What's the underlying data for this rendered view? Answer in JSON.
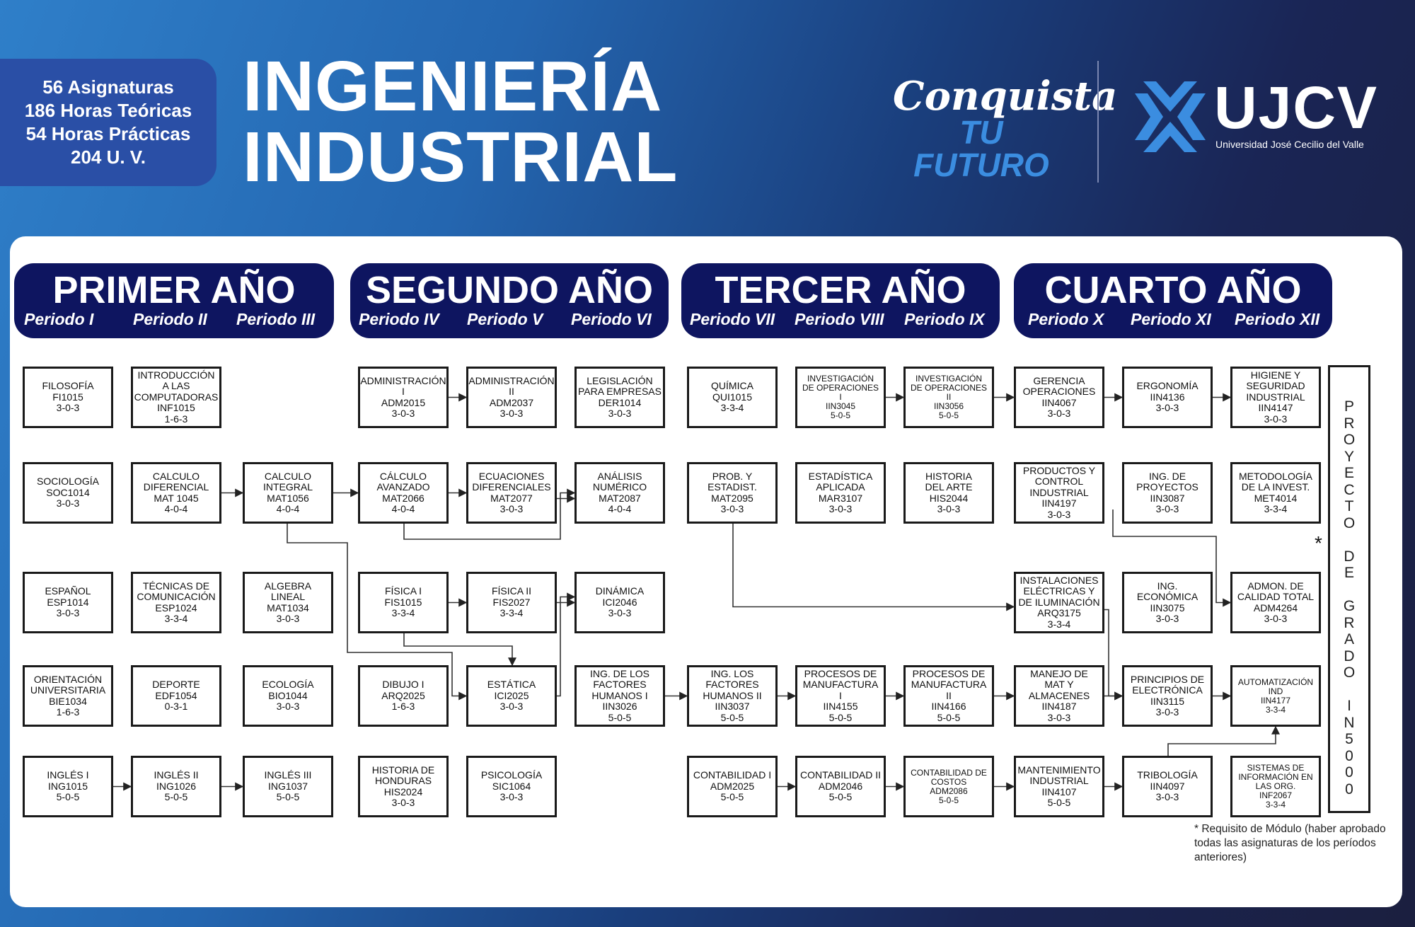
{
  "stats": {
    "subjects": "56 Asignaturas",
    "theory": "186 Horas Teóricas",
    "practice": "54 Horas Prácticas",
    "uv": "204 U. V."
  },
  "title": {
    "line1": "INGENIERÍA",
    "line2": "INDUSTRIAL"
  },
  "brand": {
    "slogan_line1": "Conquista",
    "slogan_line2": "TU FUTURO",
    "logo_text": "UJCV",
    "logo_subtitle": "Universidad José Cecilio del Valle",
    "accent": "#3b8de0",
    "navy": "#0e1560"
  },
  "years": [
    {
      "title": "PRIMER AÑO",
      "periods": [
        "Periodo I",
        "Periodo II",
        "Periodo III"
      ]
    },
    {
      "title": "SEGUNDO AÑO",
      "periods": [
        "Periodo IV",
        "Periodo V",
        "Periodo VI"
      ]
    },
    {
      "title": "TERCER AÑO",
      "periods": [
        "Periodo VII",
        "Periodo VIII",
        "Periodo IX"
      ]
    },
    {
      "title": "CUARTO AÑO",
      "periods": [
        "Periodo X",
        "Periodo XI",
        "Periodo XII"
      ]
    }
  ],
  "courses": {
    "c1_1": "FILOSOFÍA\nFI1015\n3-0-3",
    "c2_1": "INTRODUCCIÓN\nA LAS\nCOMPUTADORAS\nINF1015\n1-6-3",
    "c1_2": "SOCIOLOGÍA\nSOC1014\n3-0-3",
    "c2_2": "CALCULO\nDIFERENCIAL\nMAT 1045\n4-0-4",
    "c3_2": "CALCULO\nINTEGRAL\nMAT1056\n4-0-4",
    "c1_3": "ESPAÑOL\nESP1014\n3-0-3",
    "c2_3": "TÉCNICAS DE\nCOMUNICACIÓN\nESP1024\n3-3-4",
    "c3_3": "ALGEBRA\nLINEAL\nMAT1034\n3-0-3",
    "c1_4": "ORIENTACIÓN\nUNIVERSITARIA\nBIE1034\n1-6-3",
    "c2_4": "DEPORTE\nEDF1054\n0-3-1",
    "c3_4": "ECOLOGÍA\nBIO1044\n3-0-3",
    "c1_5": "INGLÉS I\nING1015\n5-0-5",
    "c2_5": "INGLÉS II\nING1026\n5-0-5",
    "c3_5": "INGLÉS III\nING1037\n5-0-5",
    "c4_1": "ADMINISTRACIÓN\nI\nADM2015\n3-0-3",
    "c5_1": "ADMINISTRACIÓN\nII\nADM2037\n3-0-3",
    "c6_1": "LEGISLACIÓN\nPARA EMPRESAS\nDER1014\n3-0-3",
    "c4_2": "CÁLCULO\nAVANZADO\nMAT2066\n4-0-4",
    "c5_2": "ECUACIONES\nDIFERENCIALES\nMAT2077\n3-0-3",
    "c6_2": "ANÁLISIS\nNUMÉRICO\nMAT2087\n4-0-4",
    "c4_3": "FÍSICA I\nFIS1015\n3-3-4",
    "c5_3": "FÍSICA II\nFIS2027\n3-3-4",
    "c6_3": "DINÁMICA\nICI2046\n3-0-3",
    "c4_4": "DIBUJO I\nARQ2025\n1-6-3",
    "c5_4": "ESTÁTICA\nICI2025\n3-0-3",
    "c6_4": "ING. DE LOS\nFACTORES\nHUMANOS I\nIIN3026\n5-0-5",
    "c4_5": "HISTORIA DE\nHONDURAS\nHIS2024\n3-0-3",
    "c5_5": "PSICOLOGÍA\nSIC1064\n3-0-3",
    "c7_1": "QUÍMICA\nQUI1015\n3-3-4",
    "c8_1": "INVESTIGACIÓN\nDE OPERACIONES\nI\nIIN3045\n5-0-5",
    "c9_1": "INVESTIGACIÓN\nDE OPERACIONES\nII\nIIN3056\n5-0-5",
    "c7_2": "PROB. Y\nESTADIST.\nMAT2095\n3-0-3",
    "c8_2": "ESTADÍSTICA\nAPLICADA\nMAR3107\n3-0-3",
    "c9_2": "HISTORIA\nDEL ARTE\nHIS2044\n3-0-3",
    "c7_4": "ING. LOS\nFACTORES\nHUMANOS II\nIIN3037\n5-0-5",
    "c8_4": "PROCESOS DE\nMANUFACTURA\nI\nIIN4155\n5-0-5",
    "c9_4": "PROCESOS DE\nMANUFACTURA\nII\nIIN4166\n5-0-5",
    "c7_5": "CONTABILIDAD I\nADM2025\n5-0-5",
    "c8_5": "CONTABILIDAD II\nADM2046\n5-0-5",
    "c9_5": "CONTABILIDAD DE\nCOSTOS\nADM2086\n5-0-5",
    "c10_1": "GERENCIA\nOPERACIONES\nIIN4067\n3-0-3",
    "c11_1": "ERGONOMÍA\nIIN4136\n3-0-3",
    "c12_1": "HIGIENE Y\nSEGURIDAD\nINDUSTRIAL\nIIN4147\n3-0-3",
    "c10_2": "PRODUCTOS Y\nCONTROL\nINDUSTRIAL\nIIN4197\n3-0-3",
    "c11_2": "ING. DE\nPROYECTOS\nIIN3087\n3-0-3",
    "c12_2": "METODOLOGÍA\nDE LA INVEST.\nMET4014\n3-3-4",
    "c10_3": "INSTALACIONES\nELÉCTRICAS Y\nDE ILUMINACIÓN\nARQ3175\n3-3-4",
    "c11_3": "ING.\nECONÓMICA\nIIN3075\n3-0-3",
    "c12_3": "ADMON. DE\nCALIDAD TOTAL\nADM4264\n3-0-3",
    "c10_4": "MANEJO DE\nMAT Y\nALMACENES\nIIN4187\n3-0-3",
    "c11_4": "PRINCIPIOS DE\nELECTRÓNICA\nIIN3115\n3-0-3",
    "c12_4": "AUTOMATIZACIÓN\nIND\nIIN4177\n3-3-4",
    "c10_5": "MANTENIMIENTO\nINDUSTRIAL\nIIN4107\n5-0-5",
    "c11_5": "TRIBOLOGÍA\nIIN4097\n3-0-3",
    "c12_5": "SISTEMAS DE\nINFORMACIÓN EN\nLAS ORG.\nINF2067\n3-3-4"
  },
  "proyecto": "P\nR\nO\nY\nE\nC\nT\nO\n\nD\nE\n\nG\nR\nA\nD\nO\n\nI\nN\n5\n0\n0\n0",
  "module_mark": "*",
  "footnote": "* Requisito de Módulo (haber aprobado todas las asignaturas de los períodos anteriores)"
}
